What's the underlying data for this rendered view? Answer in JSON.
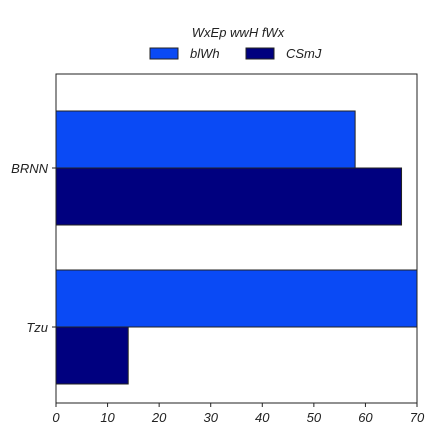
{
  "chart_data": {
    "type": "bar",
    "orientation": "horizontal",
    "legend_title": "WxEp wwH fWx",
    "legend_position": "top-center",
    "categories": [
      "BRNN",
      "Tzu"
    ],
    "series": [
      {
        "name": "blWh",
        "color": "#0a4af5",
        "values": [
          58,
          70
        ]
      },
      {
        "name": "CSmJ",
        "color": "#00007f",
        "values": [
          67,
          14
        ]
      }
    ],
    "xlim": [
      0,
      70
    ],
    "xticks": [
      0,
      10,
      20,
      30,
      40,
      50,
      60,
      70
    ],
    "grid": false
  }
}
